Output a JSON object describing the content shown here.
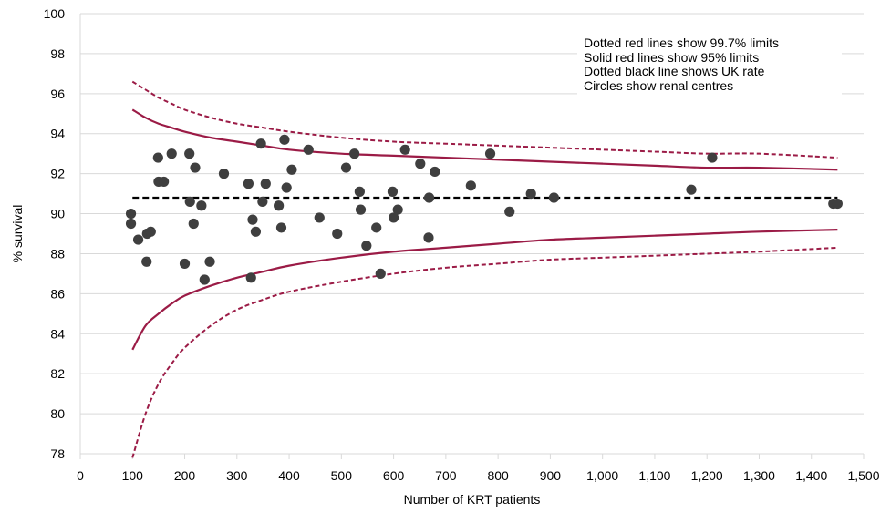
{
  "chart_data": {
    "type": "scatter",
    "xlabel": "Number of KRT patients",
    "ylabel": "% survival",
    "xlim": [
      0,
      1500
    ],
    "ylim": [
      78,
      100
    ],
    "x_ticks": [
      0,
      100,
      200,
      300,
      400,
      500,
      600,
      700,
      800,
      900,
      1000,
      1100,
      1200,
      1300,
      1400,
      1500
    ],
    "x_tick_labels": [
      "0",
      "100",
      "200",
      "300",
      "400",
      "500",
      "600",
      "700",
      "800",
      "900",
      "1,000",
      "1,100",
      "1,200",
      "1,300",
      "1,400",
      "1,500"
    ],
    "y_ticks": [
      78,
      80,
      82,
      84,
      86,
      88,
      90,
      92,
      94,
      96,
      98,
      100
    ],
    "y_tick_labels": [
      "78",
      "80",
      "82",
      "84",
      "86",
      "88",
      "90",
      "92",
      "94",
      "96",
      "98",
      "100"
    ],
    "grid": "horizontal",
    "uk_rate": 90.8,
    "limit_curve_x": [
      100,
      125,
      150,
      175,
      200,
      250,
      300,
      350,
      400,
      500,
      600,
      700,
      800,
      900,
      1000,
      1100,
      1200,
      1300,
      1450
    ],
    "upper_99_7": [
      96.6,
      96.2,
      95.8,
      95.5,
      95.2,
      94.8,
      94.5,
      94.3,
      94.1,
      93.8,
      93.6,
      93.5,
      93.4,
      93.3,
      93.2,
      93.1,
      93.0,
      93.0,
      92.8
    ],
    "upper_95": [
      95.2,
      94.8,
      94.5,
      94.3,
      94.1,
      93.8,
      93.6,
      93.4,
      93.2,
      93.0,
      92.9,
      92.8,
      92.7,
      92.6,
      92.5,
      92.4,
      92.3,
      92.3,
      92.2
    ],
    "lower_95": [
      83.2,
      84.4,
      85.0,
      85.5,
      85.9,
      86.4,
      86.8,
      87.1,
      87.4,
      87.8,
      88.1,
      88.3,
      88.5,
      88.7,
      88.8,
      88.9,
      89.0,
      89.1,
      89.2
    ],
    "lower_99_7": [
      77.8,
      80.0,
      81.5,
      82.5,
      83.3,
      84.4,
      85.2,
      85.7,
      86.1,
      86.6,
      87.0,
      87.3,
      87.5,
      87.7,
      87.8,
      87.9,
      88.0,
      88.1,
      88.3
    ],
    "points": [
      [
        97,
        90.0
      ],
      [
        97,
        89.5
      ],
      [
        111,
        88.7
      ],
      [
        127,
        87.6
      ],
      [
        128,
        89.0
      ],
      [
        135,
        89.1
      ],
      [
        149,
        92.8
      ],
      [
        150,
        91.6
      ],
      [
        160,
        91.6
      ],
      [
        175,
        93.0
      ],
      [
        200,
        87.5
      ],
      [
        209,
        93.0
      ],
      [
        210,
        90.6
      ],
      [
        217,
        89.5
      ],
      [
        220,
        92.3
      ],
      [
        232,
        90.4
      ],
      [
        238,
        86.7
      ],
      [
        248,
        87.6
      ],
      [
        275,
        92.0
      ],
      [
        322,
        91.5
      ],
      [
        327,
        86.8
      ],
      [
        330,
        89.7
      ],
      [
        336,
        89.1
      ],
      [
        346,
        93.5
      ],
      [
        349,
        90.6
      ],
      [
        355,
        91.5
      ],
      [
        380,
        90.4
      ],
      [
        385,
        89.3
      ],
      [
        391,
        93.7
      ],
      [
        395,
        91.3
      ],
      [
        405,
        92.2
      ],
      [
        437,
        93.2
      ],
      [
        458,
        89.8
      ],
      [
        492,
        89.0
      ],
      [
        509,
        92.3
      ],
      [
        525,
        93.0
      ],
      [
        535,
        91.1
      ],
      [
        537,
        90.2
      ],
      [
        548,
        88.4
      ],
      [
        567,
        89.3
      ],
      [
        575,
        87.0
      ],
      [
        598,
        91.1
      ],
      [
        600,
        89.8
      ],
      [
        608,
        90.2
      ],
      [
        622,
        93.2
      ],
      [
        651,
        92.5
      ],
      [
        667,
        88.8
      ],
      [
        668,
        90.8
      ],
      [
        679,
        92.1
      ],
      [
        748,
        91.4
      ],
      [
        785,
        93.0
      ],
      [
        822,
        90.1
      ],
      [
        863,
        91.0
      ],
      [
        907,
        90.8
      ],
      [
        1170,
        91.2
      ],
      [
        1210,
        92.8
      ],
      [
        1442,
        90.5
      ],
      [
        1450,
        90.5
      ]
    ]
  },
  "legend": {
    "line1": "Dotted red lines show 99.7% limits",
    "line2": "Solid red lines show 95% limits",
    "line3": "Dotted black line shows UK rate",
    "line4": "Circles show renal centres"
  },
  "colors": {
    "limit_line": "#9b1b46",
    "uk_line": "#000000",
    "point": "#3f3f3f",
    "grid": "#d9d9d9"
  }
}
